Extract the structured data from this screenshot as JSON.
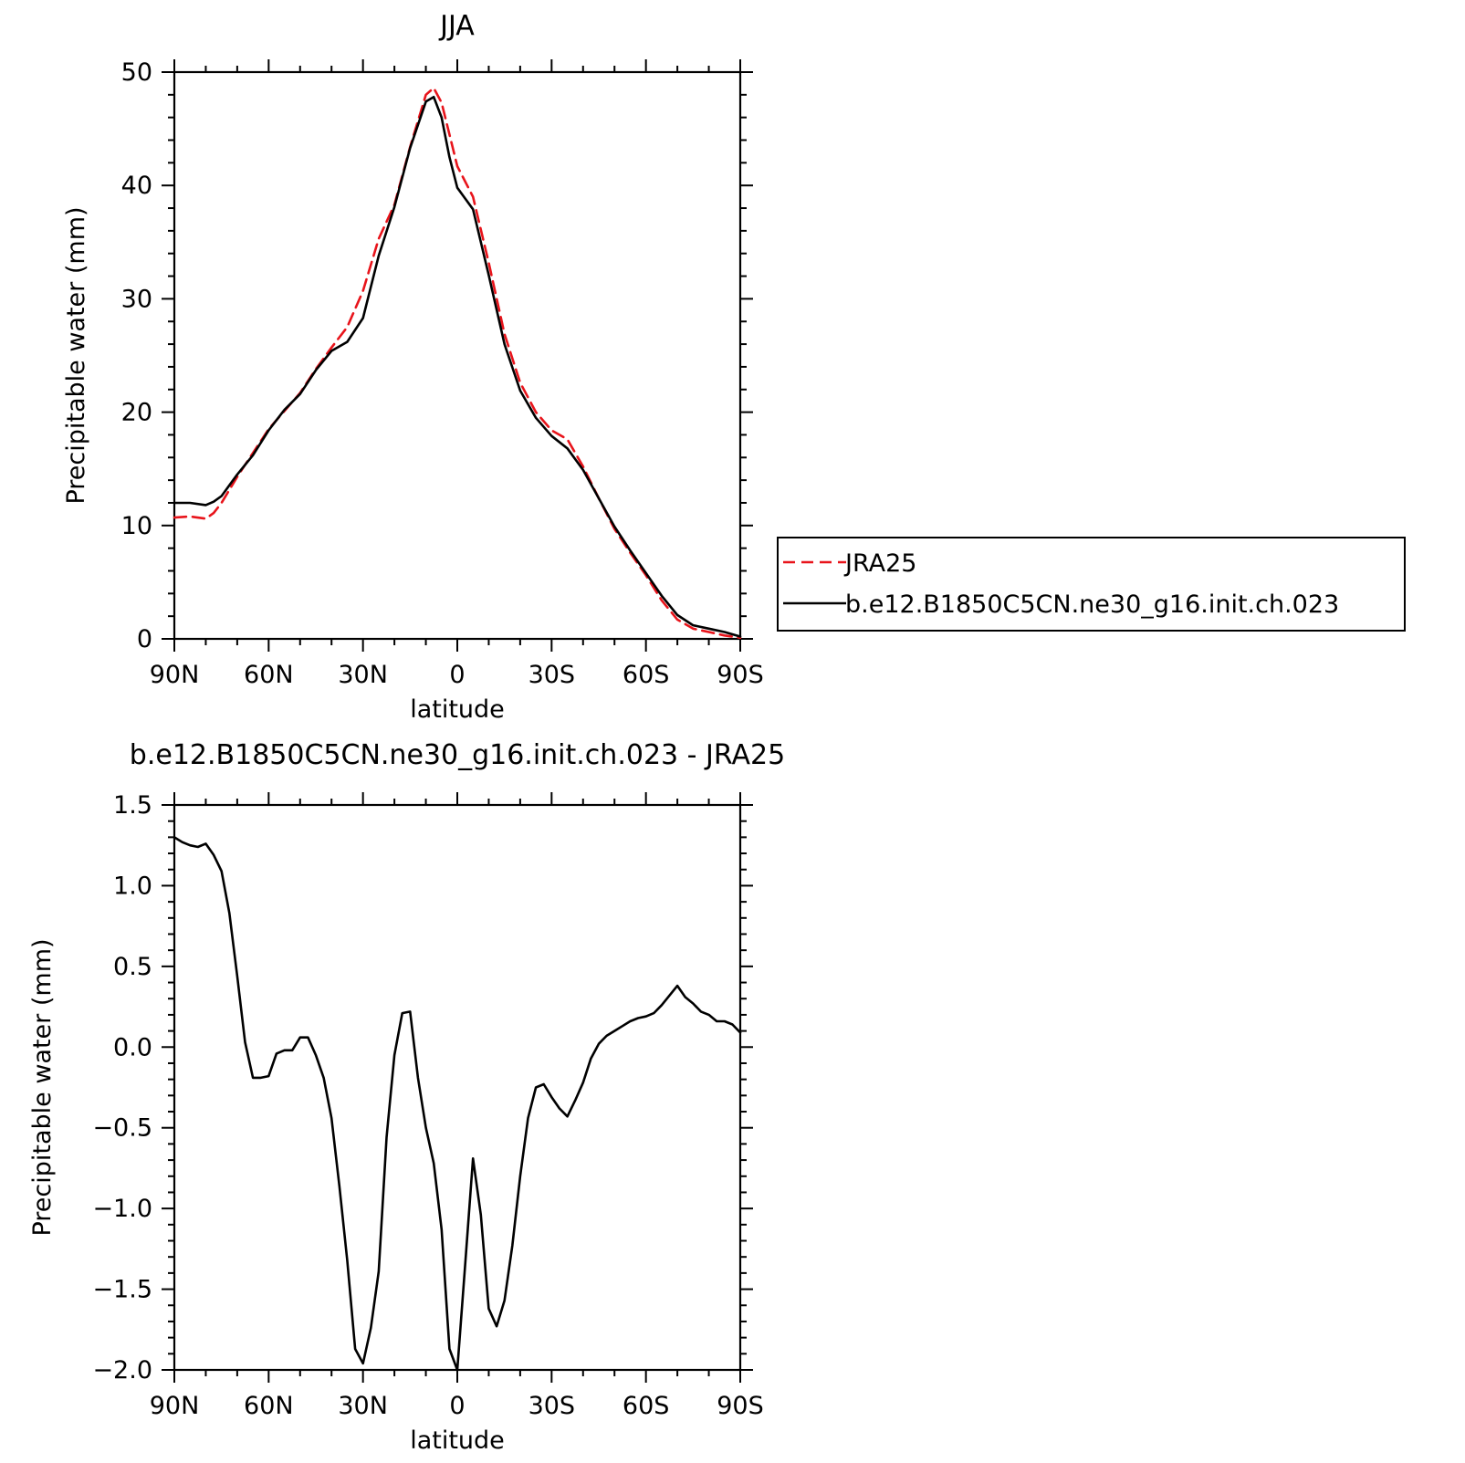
{
  "chart_data": [
    {
      "type": "line",
      "title": "JJA",
      "xlabel": "latitude",
      "ylabel": "Precipitable water (mm)",
      "xlim": [
        90,
        -90
      ],
      "ylim": [
        0,
        50
      ],
      "x_ticks": [
        90,
        60,
        30,
        0,
        -30,
        -60,
        -90
      ],
      "x_tick_labels": [
        "90N",
        "60N",
        "30N",
        "0",
        "30S",
        "60S",
        "90S"
      ],
      "y_ticks": [
        0,
        10,
        20,
        30,
        40,
        50
      ],
      "y_tick_labels": [
        "0",
        "10",
        "20",
        "30",
        "40",
        "50"
      ],
      "legend_position": "right",
      "series": [
        {
          "name": "JRA25",
          "color": "#e8141b",
          "dash": "dashed",
          "x": [
            90,
            85,
            80,
            77.5,
            75,
            70,
            65,
            60,
            55,
            50,
            45,
            40,
            35,
            30,
            25,
            20,
            15,
            10,
            7.5,
            5,
            2.5,
            0,
            -5,
            -10,
            -15,
            -20,
            -25,
            -30,
            -35,
            -40,
            -45,
            -50,
            -55,
            -60,
            -65,
            -70,
            -75,
            -80,
            -85,
            -90
          ],
          "y": [
            10.7,
            10.8,
            10.6,
            11.1,
            12.0,
            14.3,
            16.4,
            18.5,
            20.1,
            21.7,
            23.8,
            25.7,
            27.5,
            30.7,
            35.3,
            38.3,
            43.4,
            48.0,
            48.6,
            47.3,
            44.5,
            41.7,
            39.0,
            33.2,
            26.9,
            22.6,
            20.0,
            18.4,
            17.6,
            15.2,
            12.4,
            9.7,
            7.6,
            5.6,
            3.4,
            1.7,
            0.9,
            0.6,
            0.3,
            0.1
          ]
        },
        {
          "name": "b.e12.B1850C5CN.ne30_g16.init.ch.023",
          "color": "#000000",
          "dash": "solid",
          "x": [
            90,
            85,
            80,
            77.5,
            75,
            70,
            65,
            60,
            55,
            50,
            45,
            40,
            35,
            30,
            25,
            20,
            15,
            10,
            7.5,
            5,
            2.5,
            0,
            -5,
            -10,
            -15,
            -20,
            -25,
            -30,
            -35,
            -40,
            -45,
            -50,
            -55,
            -60,
            -65,
            -70,
            -75,
            -80,
            -85,
            -90
          ],
          "y": [
            12.0,
            12.0,
            11.8,
            12.1,
            12.6,
            14.5,
            16.2,
            18.4,
            20.2,
            21.6,
            23.7,
            25.4,
            26.2,
            28.3,
            33.8,
            38.1,
            43.3,
            47.4,
            47.8,
            46.0,
            42.5,
            39.8,
            37.9,
            32.1,
            26.0,
            21.9,
            19.5,
            17.9,
            16.8,
            14.9,
            12.4,
            9.9,
            7.8,
            5.8,
            3.8,
            2.1,
            1.2,
            0.9,
            0.6,
            0.2
          ]
        }
      ]
    },
    {
      "type": "line",
      "title": "b.e12.B1850C5CN.ne30_g16.init.ch.023 - JRA25",
      "xlabel": "latitude",
      "ylabel": "Precipitable water (mm)",
      "xlim": [
        90,
        -90
      ],
      "ylim": [
        -2.0,
        1.5
      ],
      "x_ticks": [
        90,
        60,
        30,
        0,
        -30,
        -60,
        -90
      ],
      "x_tick_labels": [
        "90N",
        "60N",
        "30N",
        "0",
        "30S",
        "60S",
        "90S"
      ],
      "y_ticks": [
        1.5,
        1.0,
        0.5,
        0.0,
        -0.5,
        -1.0,
        -1.5,
        -2.0
      ],
      "y_tick_labels": [
        "1.5",
        "1.0",
        "0.5",
        "0.0",
        "−0.5",
        "−1.0",
        "−1.5",
        "−2.0"
      ],
      "series": [
        {
          "color": "#000000",
          "dash": "solid",
          "x": [
            90,
            87.5,
            85,
            82.5,
            80,
            77.5,
            75,
            72.5,
            70,
            67.5,
            65,
            62.5,
            60,
            57.5,
            55,
            52.5,
            50,
            47.5,
            45,
            42.5,
            40,
            37.5,
            35,
            32.5,
            30,
            27.5,
            25,
            22.5,
            20,
            17.5,
            15,
            12.5,
            10,
            7.5,
            5,
            2.5,
            0,
            -2.5,
            -5,
            -7.5,
            -10,
            -12.5,
            -15,
            -17.5,
            -20,
            -22.5,
            -25,
            -27.5,
            -30,
            -32.5,
            -35,
            -37.5,
            -40,
            -42.5,
            -45,
            -47.5,
            -50,
            -52.5,
            -55,
            -57.5,
            -60,
            -62.5,
            -65,
            -67.5,
            -70,
            -72.5,
            -75,
            -77.5,
            -80,
            -82.5,
            -85,
            -87.5,
            -90
          ],
          "y": [
            1.3,
            1.27,
            1.25,
            1.24,
            1.26,
            1.19,
            1.09,
            0.83,
            0.44,
            0.03,
            -0.19,
            -0.19,
            -0.18,
            -0.04,
            -0.02,
            -0.02,
            0.06,
            0.06,
            -0.05,
            -0.19,
            -0.44,
            -0.86,
            -1.32,
            -1.87,
            -1.96,
            -1.74,
            -1.39,
            -0.56,
            -0.05,
            0.21,
            0.22,
            -0.19,
            -0.5,
            -0.72,
            -1.13,
            -1.87,
            -2.0,
            -1.35,
            -0.69,
            -1.04,
            -1.62,
            -1.73,
            -1.57,
            -1.23,
            -0.8,
            -0.44,
            -0.25,
            -0.23,
            -0.31,
            -0.38,
            -0.43,
            -0.33,
            -0.22,
            -0.07,
            0.02,
            0.07,
            0.1,
            0.13,
            0.16,
            0.18,
            0.19,
            0.21,
            0.26,
            0.32,
            0.38,
            0.31,
            0.27,
            0.22,
            0.2,
            0.16,
            0.16,
            0.14,
            0.09
          ]
        }
      ]
    }
  ]
}
